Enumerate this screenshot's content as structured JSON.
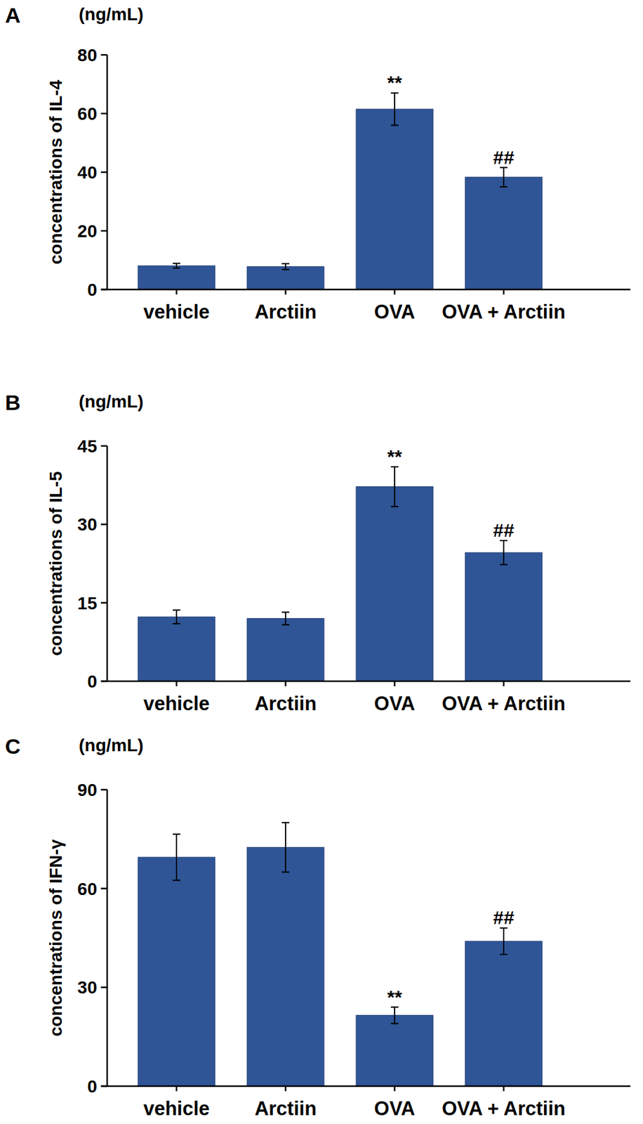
{
  "chart_data": [
    {
      "type": "bar",
      "title": "A",
      "unit": "(ng/mL)",
      "y_label": "concentrations of IL-4",
      "categories": [
        "vehicle",
        "Arctiin",
        "OVA",
        "OVA + Arctiin"
      ],
      "values": [
        8.1,
        7.8,
        61.5,
        38.3
      ],
      "errors": [
        0.8,
        1.0,
        5.5,
        3.3
      ],
      "annotations": [
        null,
        null,
        "**",
        "##"
      ],
      "color": "#2f5597",
      "ylim": [
        0,
        80
      ],
      "yticks": [
        0,
        20,
        40,
        60,
        80
      ]
    },
    {
      "type": "bar",
      "title": "B",
      "unit": "(ng/mL)",
      "y_label": "concentrations of IL-5",
      "categories": [
        "vehicle",
        "Arctiin",
        "OVA",
        "OVA + Arctiin"
      ],
      "values": [
        12.3,
        12.0,
        37.2,
        24.6
      ],
      "errors": [
        1.3,
        1.2,
        3.8,
        2.3
      ],
      "annotations": [
        null,
        null,
        "**",
        "##"
      ],
      "color": "#2f5597",
      "ylim": [
        0,
        45
      ],
      "yticks": [
        0,
        15,
        30,
        45
      ]
    },
    {
      "type": "bar",
      "title": "C",
      "unit": "(ng/mL)",
      "y_label": "concentrations of IFN-γ",
      "categories": [
        "vehicle",
        "Arctiin",
        "OVA",
        "OVA + Arctiin"
      ],
      "values": [
        69.5,
        72.5,
        21.5,
        44.0
      ],
      "errors": [
        7.0,
        7.5,
        2.5,
        4.0
      ],
      "annotations": [
        null,
        null,
        "**",
        "##"
      ],
      "color": "#2f5597",
      "ylim": [
        0,
        90
      ],
      "yticks": [
        0,
        30,
        60,
        90
      ]
    }
  ]
}
